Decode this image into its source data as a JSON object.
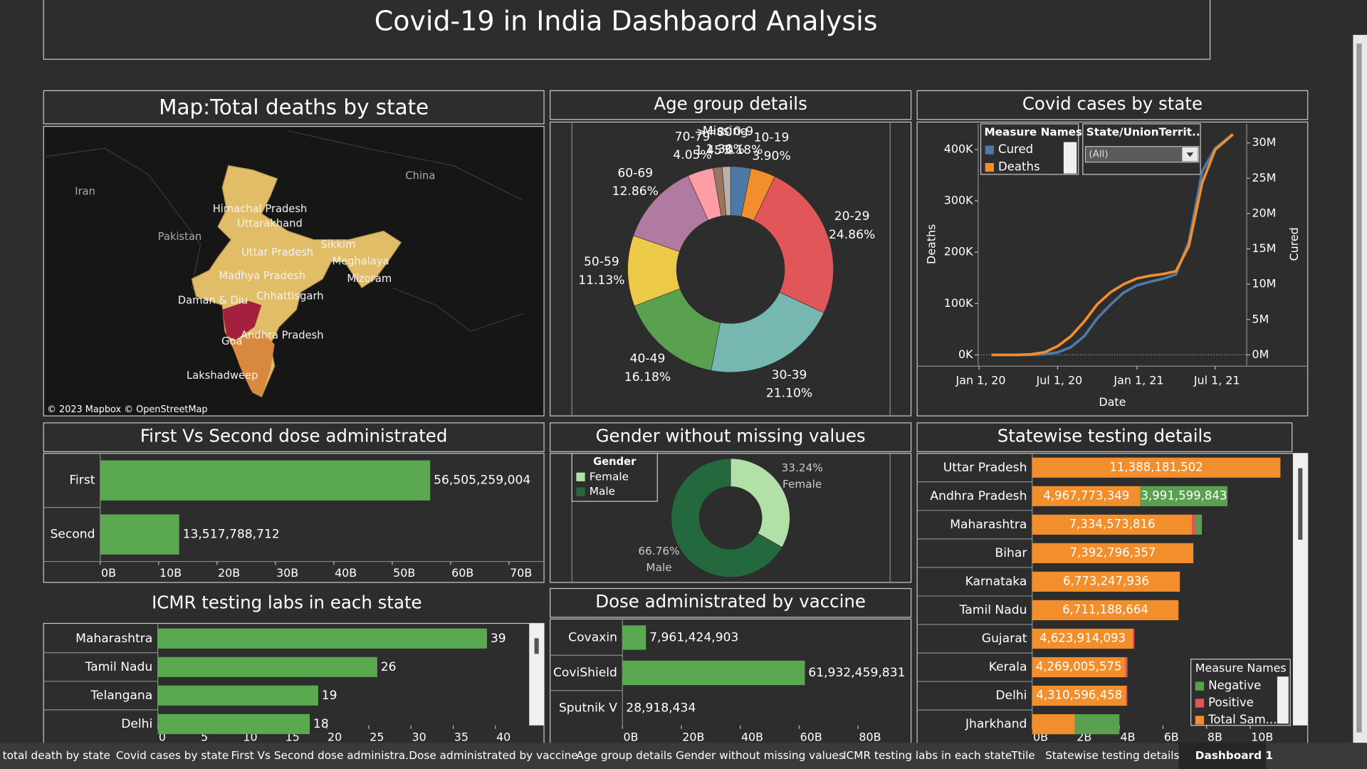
{
  "dashboard": {
    "title": "Covid-19 in India Dashbaord Analysis",
    "tabs": [
      "total death by state",
      "Covid cases by state",
      "First Vs Second dose administra...",
      "Dose administrated by vaccine",
      "Age group details",
      "Gender without missing values",
      "ICMR testing labs in each state",
      "Ttile",
      "Statewise testing details",
      "Dashboard 1"
    ]
  },
  "chart_data": [
    {
      "type": "map",
      "title": "Map:Total deaths by state",
      "labels": [
        "Iran",
        "China",
        "Pakistan",
        "Himachal Pradesh",
        "Uttarakhand",
        "Uttar Pradesh",
        "Sikkim",
        "Meghalaya",
        "Mizoram",
        "Madhya Pradesh",
        "Chhattisgarh",
        "Daman & Diu",
        "Andhra Pradesh",
        "Goa",
        "Lakshadweep"
      ],
      "attribution": "© 2023 Mapbox © OpenStreetMap"
    },
    {
      "type": "pie",
      "title": "Age group details",
      "categories": [
        "0-9",
        "10-19",
        "20-29",
        "30-39",
        "40-49",
        "50-59",
        "60-69",
        "70-79",
        ">=80",
        "Missing"
      ],
      "values": [
        3.18,
        3.9,
        24.86,
        21.1,
        16.18,
        11.13,
        12.86,
        4.05,
        1.45,
        1.3
      ],
      "value_labels": [
        "3.18%",
        "3.90%",
        "24.86%",
        "21.10%",
        "16.18%",
        "11.13%",
        "12.86%",
        "4.05%",
        "1.45%",
        "1.30%"
      ],
      "colors": [
        "#4e79a7",
        "#f28e2b",
        "#e15759",
        "#76b7b2",
        "#59a14f",
        "#edc948",
        "#b07aa1",
        "#ff9da7",
        "#9c755f",
        "#bab0ac"
      ]
    },
    {
      "type": "line",
      "title": "Covid cases by state",
      "x": [
        "2020-01-30",
        "2020-03-01",
        "2020-04-01",
        "2020-05-01",
        "2020-06-01",
        "2020-07-01",
        "2020-08-01",
        "2020-09-01",
        "2020-10-01",
        "2020-11-01",
        "2020-12-01",
        "2021-01-01",
        "2021-02-01",
        "2021-03-01",
        "2021-04-01",
        "2021-05-01",
        "2021-06-01",
        "2021-07-01",
        "2021-08-11"
      ],
      "series": [
        {
          "name": "Cured",
          "color": "#4e79a7",
          "axis": "y2",
          "values": [
            0,
            3,
            150,
            9000,
            91800,
            347000,
            1094000,
            2658000,
            5187000,
            7137000,
            8802000,
            9860000,
            10353000,
            10763000,
            11396000,
            15992000,
            25947000,
            29241000,
            31255000
          ]
        },
        {
          "name": "Deaths",
          "color": "#f28e2b",
          "values": [
            0,
            0,
            32,
            1147,
            5164,
            16893,
            36511,
            65288,
            98678,
            122111,
            137621,
            148994,
            154274,
            157248,
            162927,
            211853,
            335102,
            399459,
            429179
          ]
        }
      ],
      "xlim": [
        "2019-12-30",
        "2021-09-12"
      ],
      "xticks": [
        {
          "value": "2020-01-01",
          "label": "Jan 1, 20"
        },
        {
          "value": "2020-07-01",
          "label": "Jul 1, 20"
        },
        {
          "value": "2021-01-01",
          "label": "Jan 1, 21"
        },
        {
          "value": "2021-07-01",
          "label": "Jul 1, 21"
        }
      ],
      "ylim": [
        -22000,
        450000
      ],
      "yticks": [
        {
          "value": 0,
          "label": "0K"
        },
        {
          "value": 100000,
          "label": "100K"
        },
        {
          "value": 200000,
          "label": "200K"
        },
        {
          "value": 300000,
          "label": "300K"
        },
        {
          "value": 400000,
          "label": "400K"
        }
      ],
      "y2lim": [
        -1600000,
        32700000
      ],
      "y2ticks": [
        {
          "value": 0,
          "label": "0M"
        },
        {
          "value": 5000000,
          "label": "5M"
        },
        {
          "value": 10000000,
          "label": "10M"
        },
        {
          "value": 15000000,
          "label": "15M"
        },
        {
          "value": 20000000,
          "label": "20M"
        },
        {
          "value": 25000000,
          "label": "25M"
        },
        {
          "value": 30000000,
          "label": "30M"
        }
      ],
      "xlabel": "Date",
      "ylabel": "Deaths",
      "y2label": "Cured",
      "legend_title": "Measure Names",
      "filter_title": "State/UnionTerrit..",
      "filter_value": "(All)"
    },
    {
      "type": "bar",
      "orientation": "horizontal",
      "title": "First Vs Second dose administrated",
      "categories": [
        "First",
        "Second"
      ],
      "values": [
        56505259004,
        13517788712
      ],
      "value_labels": [
        "56,505,259,004",
        "13,517,788,712"
      ],
      "color": "#5aa84f",
      "xlim": [
        0,
        76000000000
      ],
      "xticks": [
        {
          "value": 0,
          "label": "0B"
        },
        {
          "value": 10000000000,
          "label": "10B"
        },
        {
          "value": 20000000000,
          "label": "20B"
        },
        {
          "value": 30000000000,
          "label": "30B"
        },
        {
          "value": 40000000000,
          "label": "40B"
        },
        {
          "value": 50000000000,
          "label": "50B"
        },
        {
          "value": 60000000000,
          "label": "60B"
        },
        {
          "value": 70000000000,
          "label": "70B"
        }
      ]
    },
    {
      "type": "pie",
      "title": "Gender without missing values",
      "categories": [
        "Female",
        "Male"
      ],
      "values": [
        33.24,
        66.76
      ],
      "value_labels": [
        "33.24%",
        "66.76%"
      ],
      "colors": [
        "#b3e0a6",
        "#24693d"
      ],
      "legend_title": "Gender"
    },
    {
      "type": "bar",
      "orientation": "horizontal",
      "title": "ICMR testing labs in each state",
      "categories": [
        "Maharashtra",
        "Tamil Nadu",
        "Telangana",
        "Delhi"
      ],
      "values": [
        39,
        26,
        19,
        18
      ],
      "color": "#5aa84f",
      "xlim": [
        0,
        44
      ],
      "xticks": [
        0,
        5,
        10,
        15,
        20,
        25,
        30,
        35,
        40
      ]
    },
    {
      "type": "bar",
      "orientation": "horizontal",
      "title": "Dose administrated by vaccine",
      "categories": [
        "Covaxin",
        "CoviShield",
        "Sputnik V"
      ],
      "values": [
        7961424903,
        61932459831,
        28918434
      ],
      "value_labels": [
        "7,961,424,903",
        "61,932,459,831",
        "28,918,434"
      ],
      "color": "#5aa84f",
      "xlim": [
        0,
        98000000000
      ],
      "xticks": [
        {
          "value": 0,
          "label": "0B"
        },
        {
          "value": 20000000000,
          "label": "20B"
        },
        {
          "value": 40000000000,
          "label": "40B"
        },
        {
          "value": 60000000000,
          "label": "60B"
        },
        {
          "value": 80000000000,
          "label": "80B"
        }
      ]
    },
    {
      "type": "bar",
      "orientation": "horizontal",
      "stacked": true,
      "title": "Statewise testing details",
      "categories": [
        "Uttar Pradesh",
        "Andhra Pradesh",
        "Maharashtra",
        "Bihar",
        "Karnataka",
        "Tamil Nadu",
        "Gujarat",
        "Kerala",
        "Delhi",
        "Jharkhand"
      ],
      "legend_title": "Measure Names",
      "series": [
        {
          "name": "Negative",
          "color": "#59a14f",
          "values": [
            null,
            3991599843,
            300000000,
            null,
            null,
            null,
            null,
            null,
            null,
            2050000000
          ],
          "value_labels": [
            null,
            "3,991,599,843",
            null,
            null,
            null,
            null,
            null,
            null,
            null,
            null
          ]
        },
        {
          "name": "Positive",
          "color": "#e15759",
          "values": [
            null,
            null,
            150000000,
            null,
            null,
            null,
            60000000,
            100000000,
            50000000,
            null
          ],
          "value_labels": [
            null,
            null,
            null,
            null,
            null,
            null,
            null,
            null,
            null,
            null
          ]
        },
        {
          "name": "Total Sam...",
          "color": "#f28e2b",
          "values": [
            11388181502,
            4967773349,
            7334573816,
            7392796357,
            6773247936,
            6711188664,
            4623914093,
            4269005575,
            4310596458,
            1950000000
          ],
          "value_labels": [
            "11,388,181,502",
            "4,967,773,349",
            "7,334,573,816",
            "7,392,796,357",
            "6,773,247,936",
            "6,711,188,664",
            "4,623,914,093",
            "4,269,005,575",
            "4,310,596,458",
            null
          ]
        }
      ],
      "xlim": [
        0,
        11840000000
      ],
      "xticks": [
        {
          "value": 0,
          "label": "0B"
        },
        {
          "value": 2000000000,
          "label": "2B"
        },
        {
          "value": 4000000000,
          "label": "4B"
        },
        {
          "value": 6000000000,
          "label": "6B"
        },
        {
          "value": 8000000000,
          "label": "8B"
        },
        {
          "value": 10000000000,
          "label": "10B"
        }
      ]
    }
  ]
}
